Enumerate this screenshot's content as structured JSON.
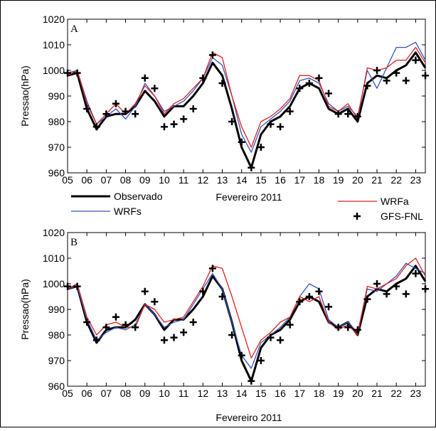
{
  "chart_data": [
    {
      "type": "line",
      "label": "A",
      "ylabel": "Pressao(hPa)",
      "xlabel": "Fevereiro 2011",
      "legend": true,
      "xlim": [
        5,
        23.5
      ],
      "ylim": [
        960,
        1020
      ],
      "xticks": [
        {
          "value": 5,
          "label": "05"
        },
        {
          "value": 6,
          "label": "06"
        },
        {
          "value": 7,
          "label": "07"
        },
        {
          "value": 8,
          "label": "08"
        },
        {
          "value": 9,
          "label": "09"
        },
        10,
        11,
        12,
        13,
        14,
        15,
        16,
        17,
        18,
        19,
        20,
        21,
        22,
        23
      ],
      "yticks": [
        960,
        970,
        980,
        990,
        1000,
        1010,
        1020
      ],
      "x": [
        5,
        5.5,
        6,
        6.5,
        7,
        7.5,
        8,
        8.5,
        9,
        9.5,
        10,
        10.5,
        11,
        11.5,
        12,
        12.5,
        13,
        13.5,
        14,
        14.5,
        15,
        15.5,
        16,
        16.5,
        17,
        17.5,
        18,
        18.5,
        19,
        19.5,
        20,
        20.5,
        21,
        21.5,
        22,
        22.5,
        23,
        23.5
      ],
      "series": [
        {
          "name": "Observado",
          "color": "#000000",
          "style": "line",
          "width": 3,
          "values": [
            998,
            999,
            985,
            977,
            982,
            983,
            983,
            986,
            992,
            988,
            982,
            986,
            986,
            990,
            995,
            1003,
            998,
            985,
            970,
            962,
            975,
            980,
            982,
            986,
            993,
            995,
            993,
            985,
            983,
            985,
            980,
            995,
            998,
            997,
            1000,
            1002,
            1007,
            1001
          ]
        },
        {
          "name": "WRFs",
          "color": "#3355bb",
          "style": "line",
          "width": 1.3,
          "values": [
            999,
            1000,
            988,
            979,
            982,
            985,
            981,
            986,
            995,
            990,
            984,
            986,
            988,
            992,
            997,
            1005,
            1002,
            990,
            975,
            968,
            978,
            981,
            984,
            988,
            996,
            997,
            995,
            987,
            984,
            986,
            982,
            1000,
            993,
            1001,
            1009,
            1009,
            1011,
            1004
          ]
        },
        {
          "name": "WRFa",
          "color": "#dd2222",
          "style": "line",
          "width": 1.3,
          "values": [
            998,
            1000,
            987,
            979,
            983,
            987,
            983,
            987,
            994,
            990,
            983,
            987,
            989,
            993,
            997,
            1007,
            1005,
            990,
            978,
            970,
            980,
            982,
            985,
            989,
            998,
            998,
            996,
            986,
            984,
            987,
            981,
            1001,
            1000,
            1001,
            1004,
            1004,
            1009,
            1003
          ]
        },
        {
          "name": "GFS-FNL",
          "color": "#000000",
          "style": "plus",
          "values": [
            999,
            999,
            985,
            978,
            983,
            987,
            984,
            983,
            997,
            993,
            978,
            979,
            981,
            985,
            997,
            1006,
            995,
            980,
            972,
            962,
            970,
            979,
            978,
            984,
            993,
            995,
            997,
            991,
            983,
            983,
            982,
            994,
            1000,
            996,
            999,
            996,
            1004,
            998
          ]
        }
      ]
    },
    {
      "type": "line",
      "label": "B",
      "ylabel": "Pressao(hPa)",
      "xlabel": "Fevereiro 2011",
      "legend": false,
      "xlim": [
        5,
        23.5
      ],
      "ylim": [
        960,
        1020
      ],
      "xticks": [
        {
          "value": 5,
          "label": "05"
        },
        {
          "value": 6,
          "label": "06"
        },
        {
          "value": 7,
          "label": "07"
        },
        {
          "value": 8,
          "label": "08"
        },
        {
          "value": 9,
          "label": "09"
        },
        10,
        11,
        12,
        13,
        14,
        15,
        16,
        17,
        18,
        19,
        20,
        21,
        22,
        23
      ],
      "yticks": [
        960,
        970,
        980,
        990,
        1000,
        1010,
        1020
      ],
      "x": [
        5,
        5.5,
        6,
        6.5,
        7,
        7.5,
        8,
        8.5,
        9,
        9.5,
        10,
        10.5,
        11,
        11.5,
        12,
        12.5,
        13,
        13.5,
        14,
        14.5,
        15,
        15.5,
        16,
        16.5,
        17,
        17.5,
        18,
        18.5,
        19,
        19.5,
        20,
        20.5,
        21,
        21.5,
        22,
        22.5,
        23,
        23.5
      ],
      "series": [
        {
          "color": "#000000",
          "style": "line",
          "width": 3,
          "values": [
            998,
            999,
            985,
            977,
            982,
            983,
            983,
            986,
            992,
            988,
            982,
            986,
            986,
            990,
            995,
            1003,
            998,
            985,
            970,
            962,
            975,
            980,
            982,
            986,
            993,
            995,
            993,
            985,
            983,
            985,
            980,
            995,
            998,
            997,
            1000,
            1002,
            1007,
            1001
          ]
        },
        {
          "color": "#3355bb",
          "style": "line",
          "width": 1.3,
          "values": [
            998,
            999,
            986,
            978,
            981,
            983,
            982,
            984,
            992,
            988,
            983,
            985,
            986,
            992,
            998,
            1004,
            998,
            985,
            972,
            967,
            977,
            980,
            983,
            987,
            995,
            1000,
            998,
            986,
            983,
            985,
            981,
            998,
            997,
            1000,
            1003,
            1008,
            1006,
            1004
          ]
        },
        {
          "color": "#dd2222",
          "style": "line",
          "width": 1.3,
          "values": [
            998,
            1000,
            987,
            980,
            984,
            985,
            983,
            983,
            992,
            990,
            985,
            986,
            987,
            993,
            999,
            1007,
            1006,
            995,
            983,
            971,
            978,
            981,
            985,
            987,
            995,
            993,
            995,
            985,
            982,
            984,
            980,
            999,
            998,
            1000,
            1002,
            1007,
            1010,
            1003
          ]
        },
        {
          "color": "#000000",
          "style": "plus",
          "values": [
            999,
            999,
            985,
            978,
            983,
            987,
            984,
            983,
            997,
            993,
            978,
            979,
            981,
            985,
            997,
            1006,
            995,
            980,
            972,
            962,
            970,
            979,
            978,
            984,
            993,
            995,
            997,
            991,
            983,
            983,
            982,
            994,
            1000,
            996,
            999,
            996,
            1004,
            998
          ]
        }
      ]
    }
  ]
}
